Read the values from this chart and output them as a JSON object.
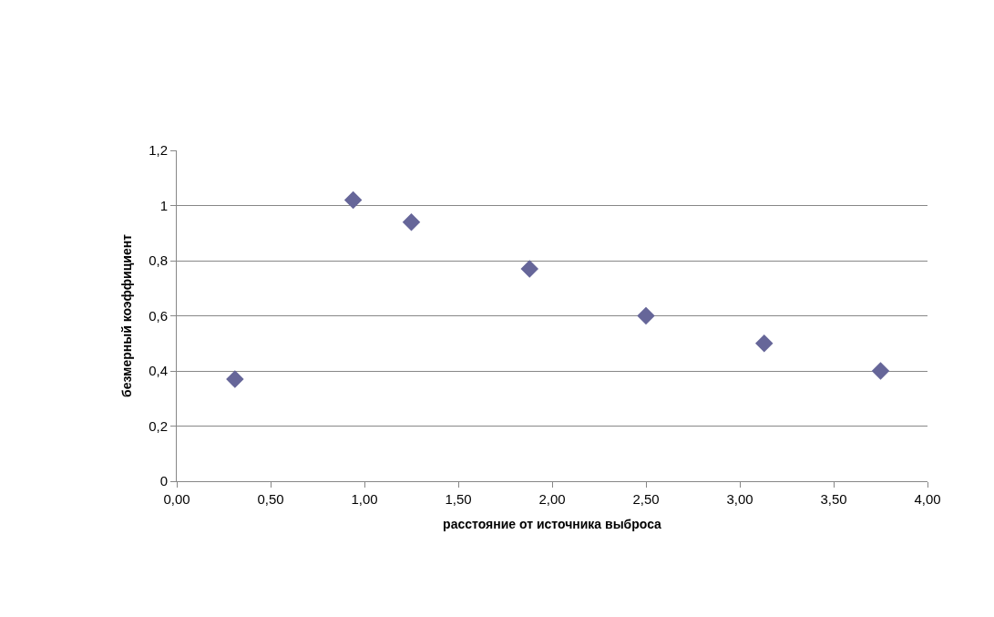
{
  "chart_data": {
    "type": "scatter",
    "xlabel": "расстояние от источника выброса",
    "ylabel": "безмерный коэффициент",
    "x": [
      0.31,
      0.94,
      1.25,
      1.88,
      2.5,
      3.13,
      3.75
    ],
    "values": [
      0.37,
      1.02,
      0.94,
      0.77,
      0.6,
      0.5,
      0.4
    ],
    "color": "#666699",
    "marker": "diamond",
    "grid": "y",
    "legend": false,
    "xlim": [
      0,
      4
    ],
    "xticks": [
      {
        "value": 0,
        "label": "0,00"
      },
      {
        "value": 0.5,
        "label": "0,50"
      },
      {
        "value": 1,
        "label": "1,00"
      },
      {
        "value": 1.5,
        "label": "1,50"
      },
      {
        "value": 2,
        "label": "2,00"
      },
      {
        "value": 2.5,
        "label": "2,50"
      },
      {
        "value": 3,
        "label": "3,00"
      },
      {
        "value": 3.5,
        "label": "3,50"
      },
      {
        "value": 4,
        "label": "4,00"
      }
    ],
    "ylim": [
      0,
      1.2
    ],
    "yticks": [
      0,
      {
        "value": 0.2,
        "label": "0,2"
      },
      {
        "value": 0.4,
        "label": "0,4"
      },
      {
        "value": 0.6,
        "label": "0,6"
      },
      {
        "value": 0.8,
        "label": "0,8"
      },
      1,
      {
        "value": 1.2,
        "label": "1,2"
      }
    ]
  }
}
